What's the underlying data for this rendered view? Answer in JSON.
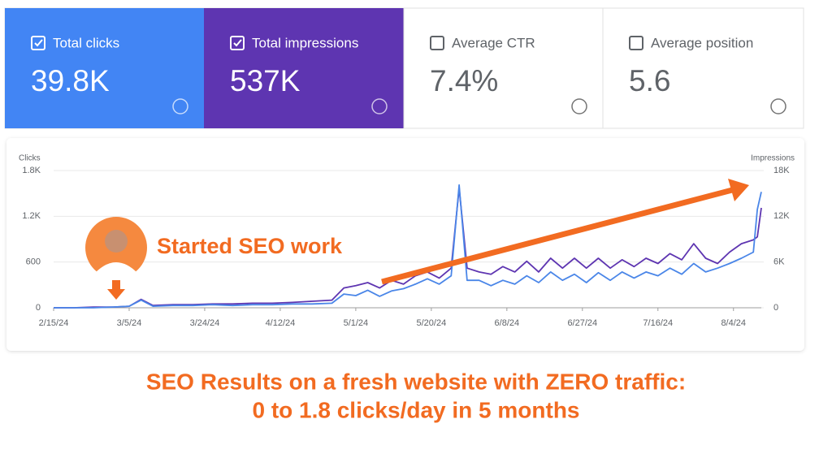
{
  "cards": [
    {
      "label": "Total clicks",
      "value": "39.8K",
      "checked": true,
      "color": "#4285f4"
    },
    {
      "label": "Total impressions",
      "value": "537K",
      "checked": true,
      "color": "#5e35b1"
    },
    {
      "label": "Average CTR",
      "value": "7.4%",
      "checked": false,
      "color": "#ffffff"
    },
    {
      "label": "Average position",
      "value": "5.6",
      "checked": false,
      "color": "#ffffff"
    }
  ],
  "chart_data": {
    "type": "line",
    "y_label": "Clicks",
    "y2_label": "Impressions",
    "x": [
      "2/15/24",
      "2/20/24",
      "2/25/24",
      "3/1/24",
      "3/5/24",
      "3/8/24",
      "3/11/24",
      "3/16/24",
      "3/21/24",
      "3/26/24",
      "3/31/24",
      "4/5/24",
      "4/10/24",
      "4/15/24",
      "4/20/24",
      "4/25/24",
      "4/28/24",
      "5/1/24",
      "5/4/24",
      "5/7/24",
      "5/10/24",
      "5/13/24",
      "5/16/24",
      "5/19/24",
      "5/22/24",
      "5/25/24",
      "5/27/24",
      "5/29/24",
      "6/1/24",
      "6/4/24",
      "6/7/24",
      "6/10/24",
      "6/13/24",
      "6/16/24",
      "6/19/24",
      "6/22/24",
      "6/25/24",
      "6/28/24",
      "7/1/24",
      "7/4/24",
      "7/7/24",
      "7/10/24",
      "7/13/24",
      "7/16/24",
      "7/19/24",
      "7/22/24",
      "7/25/24",
      "7/28/24",
      "7/31/24",
      "8/3/24",
      "8/6/24",
      "8/9/24",
      "8/10/24",
      "8/11/24"
    ],
    "series": [
      {
        "color": "#4a86e8",
        "axis": "y",
        "values": [
          0,
          0,
          0,
          10,
          20,
          100,
          20,
          30,
          30,
          40,
          30,
          40,
          40,
          50,
          50,
          60,
          180,
          160,
          230,
          150,
          220,
          250,
          310,
          380,
          310,
          420,
          1610,
          360,
          360,
          290,
          360,
          310,
          420,
          330,
          470,
          360,
          440,
          330,
          460,
          360,
          470,
          390,
          470,
          420,
          520,
          440,
          580,
          470,
          520,
          580,
          650,
          730,
          1290,
          1520
        ]
      },
      {
        "color": "#5e35b1",
        "axis": "y2",
        "values": [
          0,
          0,
          100,
          100,
          200,
          1100,
          300,
          400,
          400,
          500,
          500,
          600,
          600,
          700,
          850,
          1000,
          2600,
          2900,
          3300,
          2600,
          3600,
          3100,
          4200,
          4700,
          3900,
          5200,
          15700,
          5200,
          4700,
          4400,
          5400,
          4700,
          6100,
          4700,
          6500,
          5200,
          6500,
          5200,
          6500,
          5200,
          6300,
          5400,
          6500,
          5800,
          7100,
          6300,
          8400,
          6500,
          5800,
          7300,
          8400,
          8900,
          9300,
          13100
        ]
      }
    ],
    "xlim": [
      "2/15/24",
      "8/11/24"
    ],
    "xticks": [
      "2/15/24",
      "3/5/24",
      "3/24/24",
      "4/12/24",
      "5/1/24",
      "5/20/24",
      "6/8/24",
      "6/27/24",
      "7/16/24",
      "8/4/24"
    ],
    "ylim": [
      0,
      1800
    ],
    "yticks": [
      0,
      600,
      {
        "value": 1200,
        "label": "1.2K"
      },
      {
        "value": 1800,
        "label": "1.8K"
      }
    ],
    "y2lim": [
      0,
      18000
    ],
    "y2ticks": [
      0,
      {
        "value": 6000,
        "label": "6K"
      },
      {
        "value": 12000,
        "label": "12K"
      },
      {
        "value": 18000,
        "label": "18K"
      }
    ],
    "grid": true,
    "annotation": "Started SEO work"
  },
  "caption": [
    "SEO Results on  a fresh website with ZERO traffic:",
    "0 to 1.8 clicks/day in 5 months"
  ]
}
